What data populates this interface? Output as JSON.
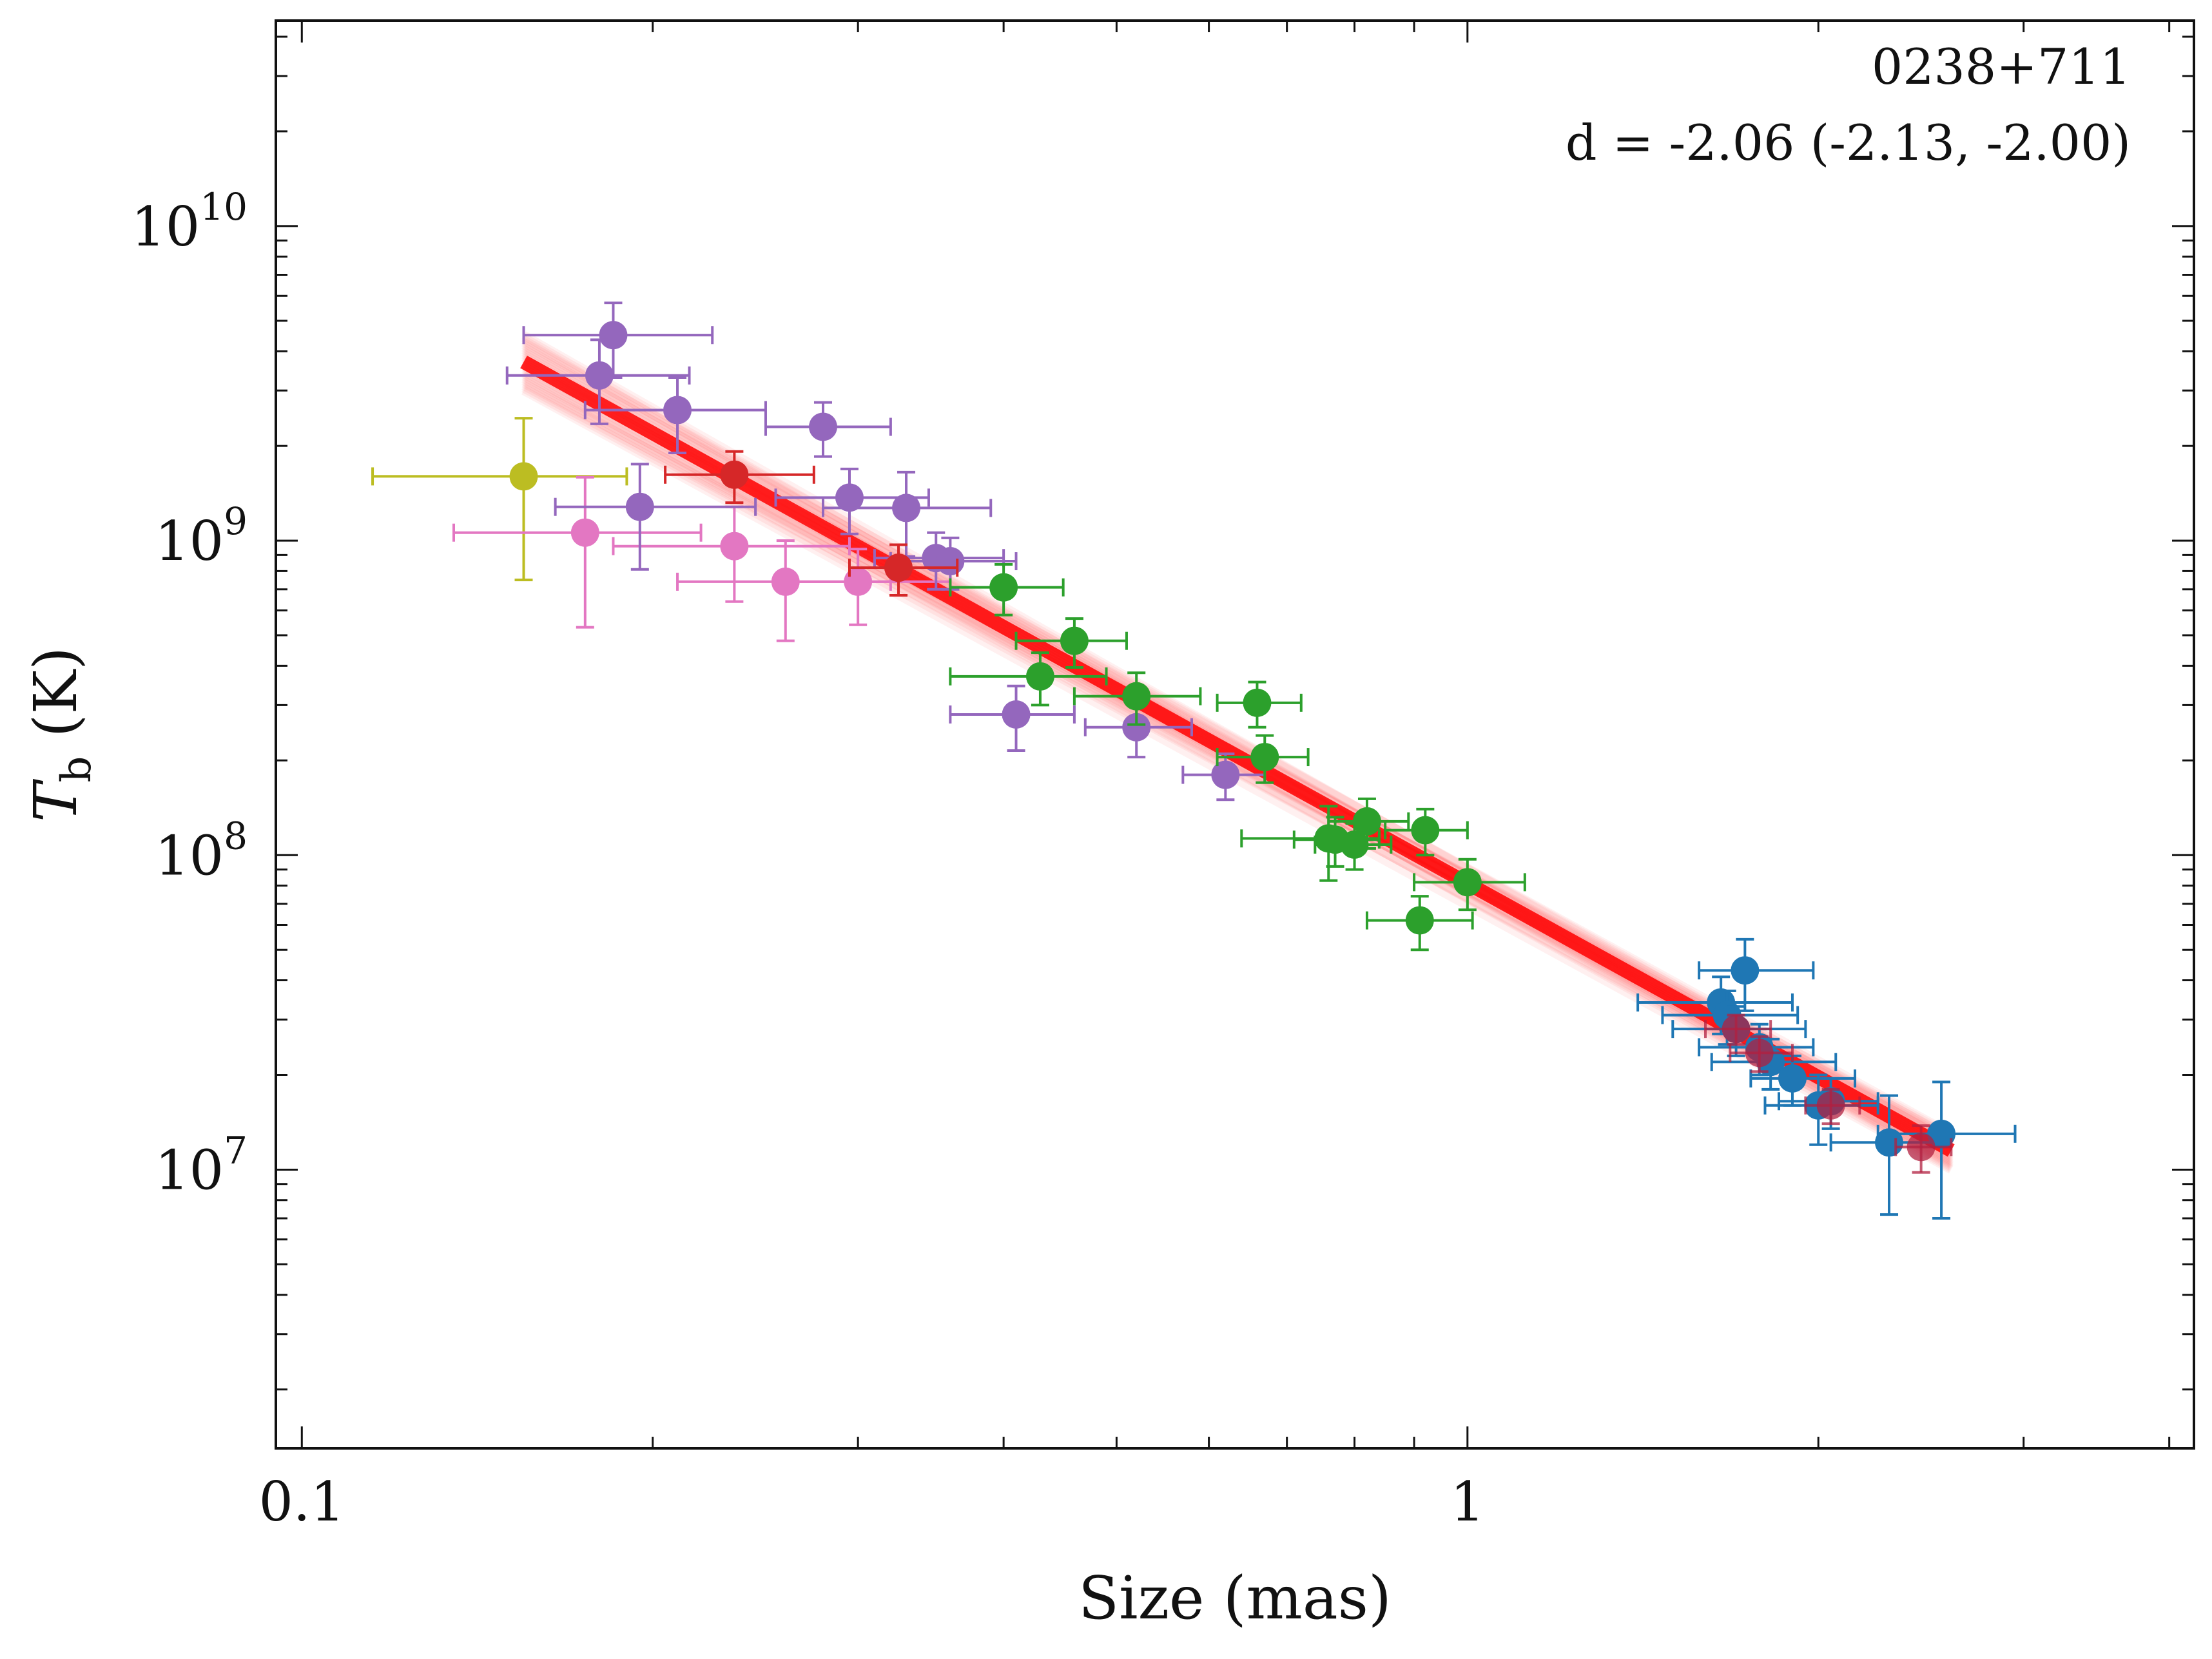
{
  "chart_data": {
    "type": "scatter",
    "title": "",
    "xlabel": "Size (mas)",
    "ylabel_main": "T",
    "ylabel_sub": "b",
    "ylabel_unit": " (K)",
    "xscale": "log",
    "yscale": "log",
    "xlim": [
      0.095,
      4.2
    ],
    "ylim": [
      1300000.0,
      45000000000.0
    ],
    "xticks": [
      {
        "value": 0.1,
        "label": "0.1"
      },
      {
        "value": 1,
        "label": "1"
      }
    ],
    "yticks": [
      {
        "value": 10000000.0,
        "base": "10",
        "exp": "7"
      },
      {
        "value": 100000000.0,
        "base": "10",
        "exp": "8"
      },
      {
        "value": 1000000000.0,
        "base": "10",
        "exp": "9"
      },
      {
        "value": 10000000000.0,
        "base": "10",
        "exp": "10"
      }
    ],
    "annotation": {
      "source": "0238+711",
      "fit": "d = -2.06 (-2.13, -2.00)"
    },
    "fit_line": {
      "color": "#ff0000",
      "x": [
        0.155,
        2.6
      ],
      "y": [
        3700000000.0,
        11500000.0
      ],
      "band_y_low": [
        3000000000.0,
        10000000.0
      ],
      "band_y_high": [
        4500000000.0,
        13000000.0
      ]
    },
    "series": [
      {
        "name": "yellow",
        "color": "#bcbd22",
        "points": [
          {
            "x": 0.155,
            "y": 1600000000.0,
            "xerr": [
              0.04,
              0.035
            ],
            "yerr": [
              850000000.0,
              850000000.0
            ]
          }
        ]
      },
      {
        "name": "pink",
        "color": "#e377c2",
        "points": [
          {
            "x": 0.175,
            "y": 1060000000.0,
            "xerr": [
              0.04,
              0.045
            ],
            "yerr": [
              530000000.0,
              530000000.0
            ]
          },
          {
            "x": 0.235,
            "y": 960000000.0,
            "xerr": [
              0.05,
              0.06
            ],
            "yerr": [
              320000000.0,
              320000000.0
            ]
          },
          {
            "x": 0.26,
            "y": 740000000.0,
            "xerr": [
              0.05,
              0.06
            ],
            "yerr": [
              260000000.0,
              260000000.0
            ]
          },
          {
            "x": 0.3,
            "y": 740000000.0,
            "xerr": [
              0.04,
              0.06
            ],
            "yerr": [
              200000000.0,
              200000000.0
            ]
          }
        ]
      },
      {
        "name": "purple",
        "color": "#9467bd",
        "points": [
          {
            "x": 0.185,
            "y": 4500000000.0,
            "xerr": [
              0.03,
              0.04
            ],
            "yerr": [
              1200000000.0,
              1200000000.0
            ]
          },
          {
            "x": 0.18,
            "y": 3350000000.0,
            "xerr": [
              0.03,
              0.035
            ],
            "yerr": [
              1000000000.0,
              1000000000.0
            ]
          },
          {
            "x": 0.21,
            "y": 2600000000.0,
            "xerr": [
              0.035,
              0.04
            ],
            "yerr": [
              700000000.0,
              700000000.0
            ]
          },
          {
            "x": 0.28,
            "y": 2300000000.0,
            "xerr": [
              0.03,
              0.04
            ],
            "yerr": [
              450000000.0,
              450000000.0
            ]
          },
          {
            "x": 0.195,
            "y": 1280000000.0,
            "xerr": [
              0.03,
              0.05
            ],
            "yerr": [
              470000000.0,
              470000000.0
            ]
          },
          {
            "x": 0.295,
            "y": 1370000000.0,
            "xerr": [
              0.04,
              0.05
            ],
            "yerr": [
              320000000.0,
              320000000.0
            ]
          },
          {
            "x": 0.33,
            "y": 1270000000.0,
            "xerr": [
              0.05,
              0.06
            ],
            "yerr": [
              380000000.0,
              380000000.0
            ]
          },
          {
            "x": 0.35,
            "y": 880000000.0,
            "xerr": [
              0.04,
              0.05
            ],
            "yerr": [
              180000000.0,
              180000000.0
            ]
          },
          {
            "x": 0.36,
            "y": 860000000.0,
            "xerr": [
              0.04,
              0.05
            ],
            "yerr": [
              160000000.0,
              160000000.0
            ]
          },
          {
            "x": 0.41,
            "y": 280000000.0,
            "xerr": [
              0.05,
              0.05
            ],
            "yerr": [
              65000000.0,
              65000000.0
            ]
          },
          {
            "x": 0.52,
            "y": 255000000.0,
            "xerr": [
              0.05,
              0.06
            ],
            "yerr": [
              50000000.0,
              50000000.0
            ]
          },
          {
            "x": 0.62,
            "y": 180000000.0,
            "xerr": [
              0.05,
              0.05
            ],
            "yerr": [
              30000000.0,
              30000000.0
            ]
          }
        ]
      },
      {
        "name": "red",
        "color": "#d62728",
        "points": [
          {
            "x": 0.235,
            "y": 1620000000.0,
            "xerr": [
              0.03,
              0.04
            ],
            "yerr": [
              300000000.0,
              300000000.0
            ]
          },
          {
            "x": 0.325,
            "y": 820000000.0,
            "xerr": [
              0.03,
              0.04
            ],
            "yerr": [
              150000000.0,
              150000000.0
            ]
          }
        ]
      },
      {
        "name": "green",
        "color": "#2ca02c",
        "points": [
          {
            "x": 0.4,
            "y": 710000000.0,
            "xerr": [
              0.04,
              0.05
            ],
            "yerr": [
              130000000.0,
              130000000.0
            ]
          },
          {
            "x": 0.46,
            "y": 480000000.0,
            "xerr": [
              0.05,
              0.05
            ],
            "yerr": [
              85000000.0,
              85000000.0
            ]
          },
          {
            "x": 0.43,
            "y": 370000000.0,
            "xerr": [
              0.07,
              0.06
            ],
            "yerr": [
              70000000.0,
              70000000.0
            ]
          },
          {
            "x": 0.52,
            "y": 320000000.0,
            "xerr": [
              0.06,
              0.07
            ],
            "yerr": [
              60000000.0,
              60000000.0
            ]
          },
          {
            "x": 0.66,
            "y": 305000000.0,
            "xerr": [
              0.05,
              0.06
            ],
            "yerr": [
              50000000.0,
              50000000.0
            ]
          },
          {
            "x": 0.67,
            "y": 205000000.0,
            "xerr": [
              0.06,
              0.06
            ],
            "yerr": [
              35000000.0,
              35000000.0
            ]
          },
          {
            "x": 0.76,
            "y": 113000000.0,
            "xerr": [
              0.12,
              0.08
            ],
            "yerr": [
              30000000.0,
              30000000.0
            ]
          },
          {
            "x": 0.77,
            "y": 112000000.0,
            "xerr": [
              0.06,
              0.07
            ],
            "yerr": [
              20000000.0,
              20000000.0
            ]
          },
          {
            "x": 0.82,
            "y": 128000000.0,
            "xerr": [
              0.06,
              0.07
            ],
            "yerr": [
              23000000.0,
              23000000.0
            ]
          },
          {
            "x": 0.92,
            "y": 120000000.0,
            "xerr": [
              0.07,
              0.08
            ],
            "yerr": [
              20000000.0,
              20000000.0
            ]
          },
          {
            "x": 0.8,
            "y": 108000000.0,
            "xerr": [
              0.06,
              0.06
            ],
            "yerr": [
              18000000.0,
              18000000.0
            ]
          },
          {
            "x": 0.91,
            "y": 62000000.0,
            "xerr": [
              0.09,
              0.1
            ],
            "yerr": [
              12000000.0,
              12000000.0
            ]
          },
          {
            "x": 1.0,
            "y": 82000000.0,
            "xerr": [
              0.1,
              0.12
            ],
            "yerr": [
              15000000.0,
              15000000.0
            ]
          }
        ]
      },
      {
        "name": "blue",
        "color": "#1f77b4",
        "points": [
          {
            "x": 1.73,
            "y": 43000000.0,
            "xerr": [
              0.15,
              0.25
            ],
            "yerr": [
              11000000.0,
              11000000.0
            ]
          },
          {
            "x": 1.65,
            "y": 34000000.0,
            "xerr": [
              0.25,
              0.25
            ],
            "yerr": [
              7000000.0,
              7000000.0
            ]
          },
          {
            "x": 1.67,
            "y": 31000000.0,
            "xerr": [
              0.2,
              0.25
            ],
            "yerr": [
              6000000.0,
              6000000.0
            ]
          },
          {
            "x": 1.7,
            "y": 28000000.0,
            "xerr": [
              0.2,
              0.25
            ],
            "yerr": [
              5000000.0,
              5000000.0
            ]
          },
          {
            "x": 1.78,
            "y": 24500000.0,
            "xerr": [
              0.2,
              0.2
            ],
            "yerr": [
              4500000.0,
              4500000.0
            ]
          },
          {
            "x": 1.82,
            "y": 22000000.0,
            "xerr": [
              0.2,
              0.25
            ],
            "yerr": [
              4000000.0,
              4000000.0
            ]
          },
          {
            "x": 1.9,
            "y": 19500000.0,
            "xerr": [
              0.15,
              0.25
            ],
            "yerr": [
              3500000.0,
              3500000.0
            ]
          },
          {
            "x": 2.05,
            "y": 16500000.0,
            "xerr": [
              0.2,
              0.2
            ],
            "yerr": [
              3000000.0,
              3000000.0
            ]
          },
          {
            "x": 2.0,
            "y": 16000000.0,
            "xerr": [
              0.2,
              0.25
            ],
            "yerr": [
              4000000.0,
              4000000.0
            ]
          },
          {
            "x": 2.3,
            "y": 12200000.0,
            "xerr": [
              0.25,
              0.25
            ],
            "yerr": [
              5000000.0,
              5000000.0
            ]
          },
          {
            "x": 2.55,
            "y": 13000000.0,
            "xerr": [
              0.3,
              0.4
            ],
            "yerr": [
              6000000.0,
              6000000.0
            ]
          }
        ]
      },
      {
        "name": "red-overlap",
        "color": "#b22040",
        "points": [
          {
            "x": 1.7,
            "y": 28000000.0,
            "xerr": [
              0.1,
              0.12
            ],
            "yerr": [
              3000000.0,
              3000000.0
            ]
          },
          {
            "x": 1.78,
            "y": 23500000.0,
            "xerr": [
              0.1,
              0.12
            ],
            "yerr": [
              3000000.0,
              3000000.0
            ]
          },
          {
            "x": 2.05,
            "y": 16000000.0,
            "xerr": [
              0.1,
              0.12
            ],
            "yerr": [
              2000000.0,
              2000000.0
            ]
          },
          {
            "x": 2.45,
            "y": 11800000.0,
            "xerr": [
              0.12,
              0.15
            ],
            "yerr": [
              2000000.0,
              2000000.0
            ]
          }
        ]
      }
    ]
  }
}
